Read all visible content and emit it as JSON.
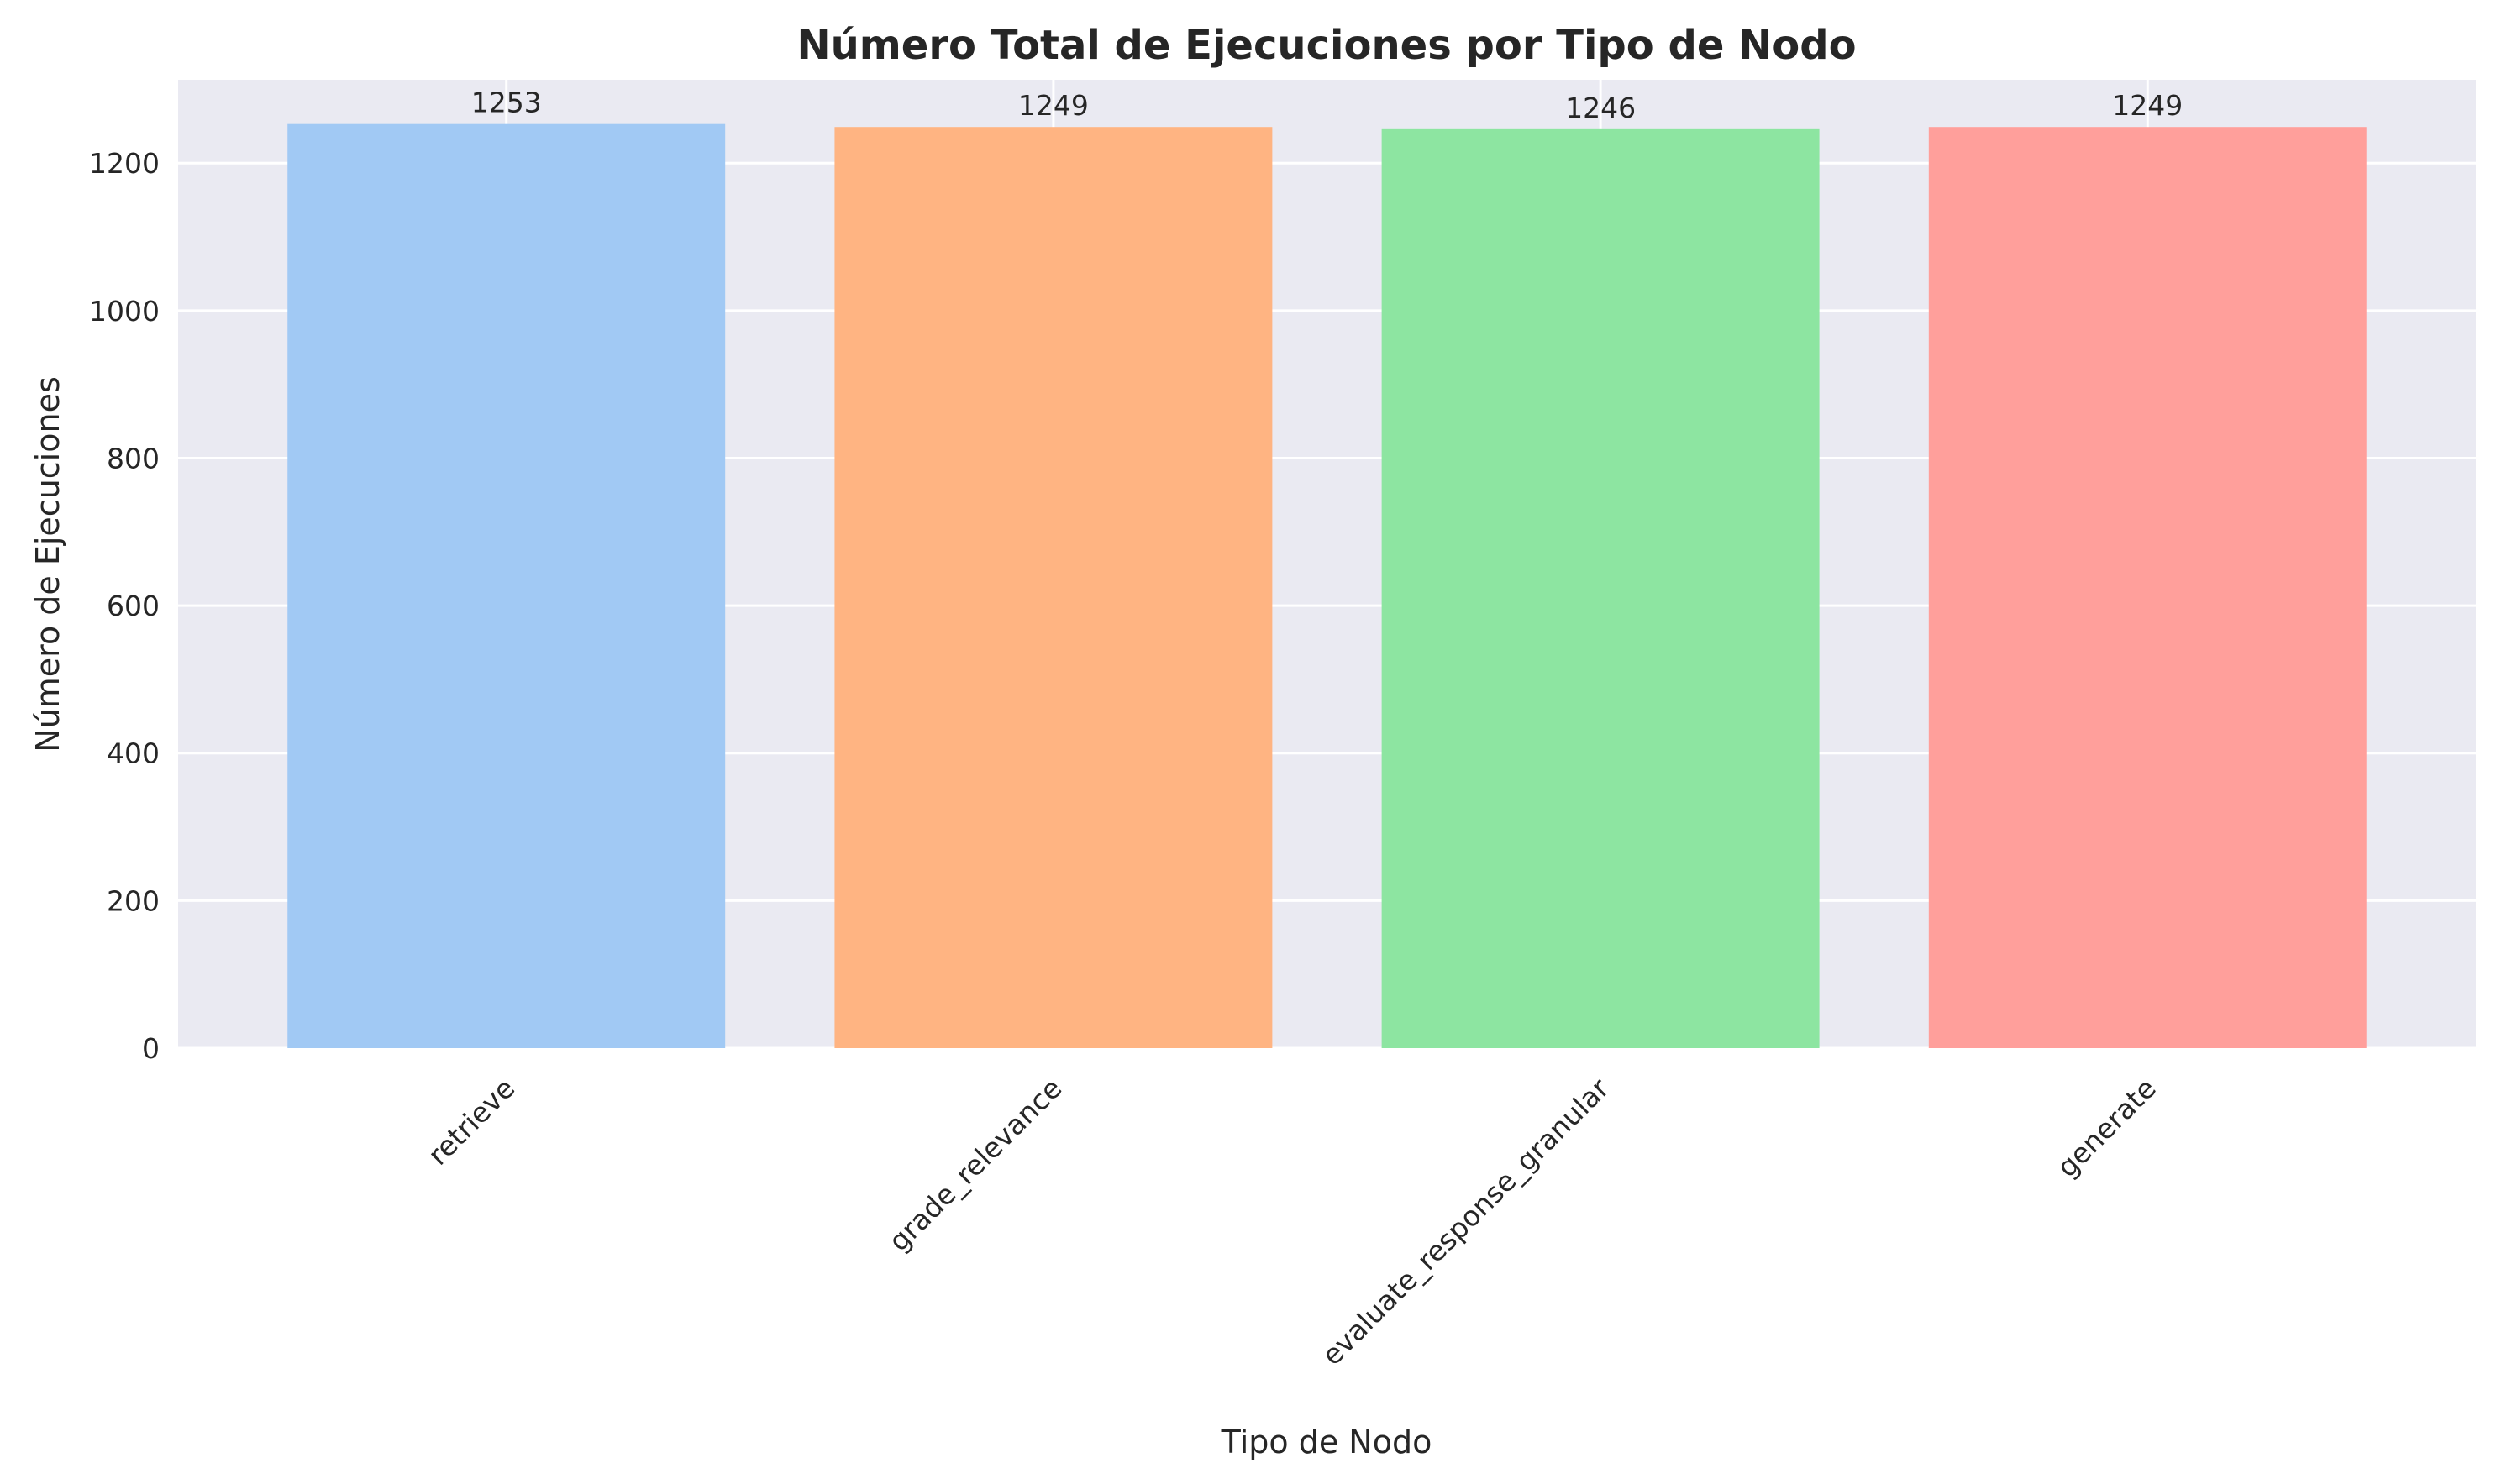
{
  "chart_data": {
    "type": "bar",
    "title": "Número Total de Ejecuciones por Tipo de Nodo",
    "xlabel": "Tipo de Nodo",
    "ylabel": "Número de Ejecuciones",
    "categories": [
      "retrieve",
      "grade_relevance",
      "evaluate_response_granular",
      "generate"
    ],
    "values": [
      1253,
      1249,
      1246,
      1249
    ],
    "data_labels": [
      "1253",
      "1249",
      "1246",
      "1249"
    ],
    "colors": [
      "#a1c9f4",
      "#ffb482",
      "#8de5a1",
      "#ff9f9b"
    ],
    "ylim": [
      0,
      1313
    ],
    "yticks": [
      0,
      200,
      400,
      600,
      800,
      1000,
      1200
    ],
    "ytick_labels": [
      "0",
      "200",
      "400",
      "600",
      "800",
      "1000",
      "1200"
    ],
    "grid": true,
    "background": "#eaeaf2",
    "grid_color": "#ffffff",
    "legend": "none"
  }
}
